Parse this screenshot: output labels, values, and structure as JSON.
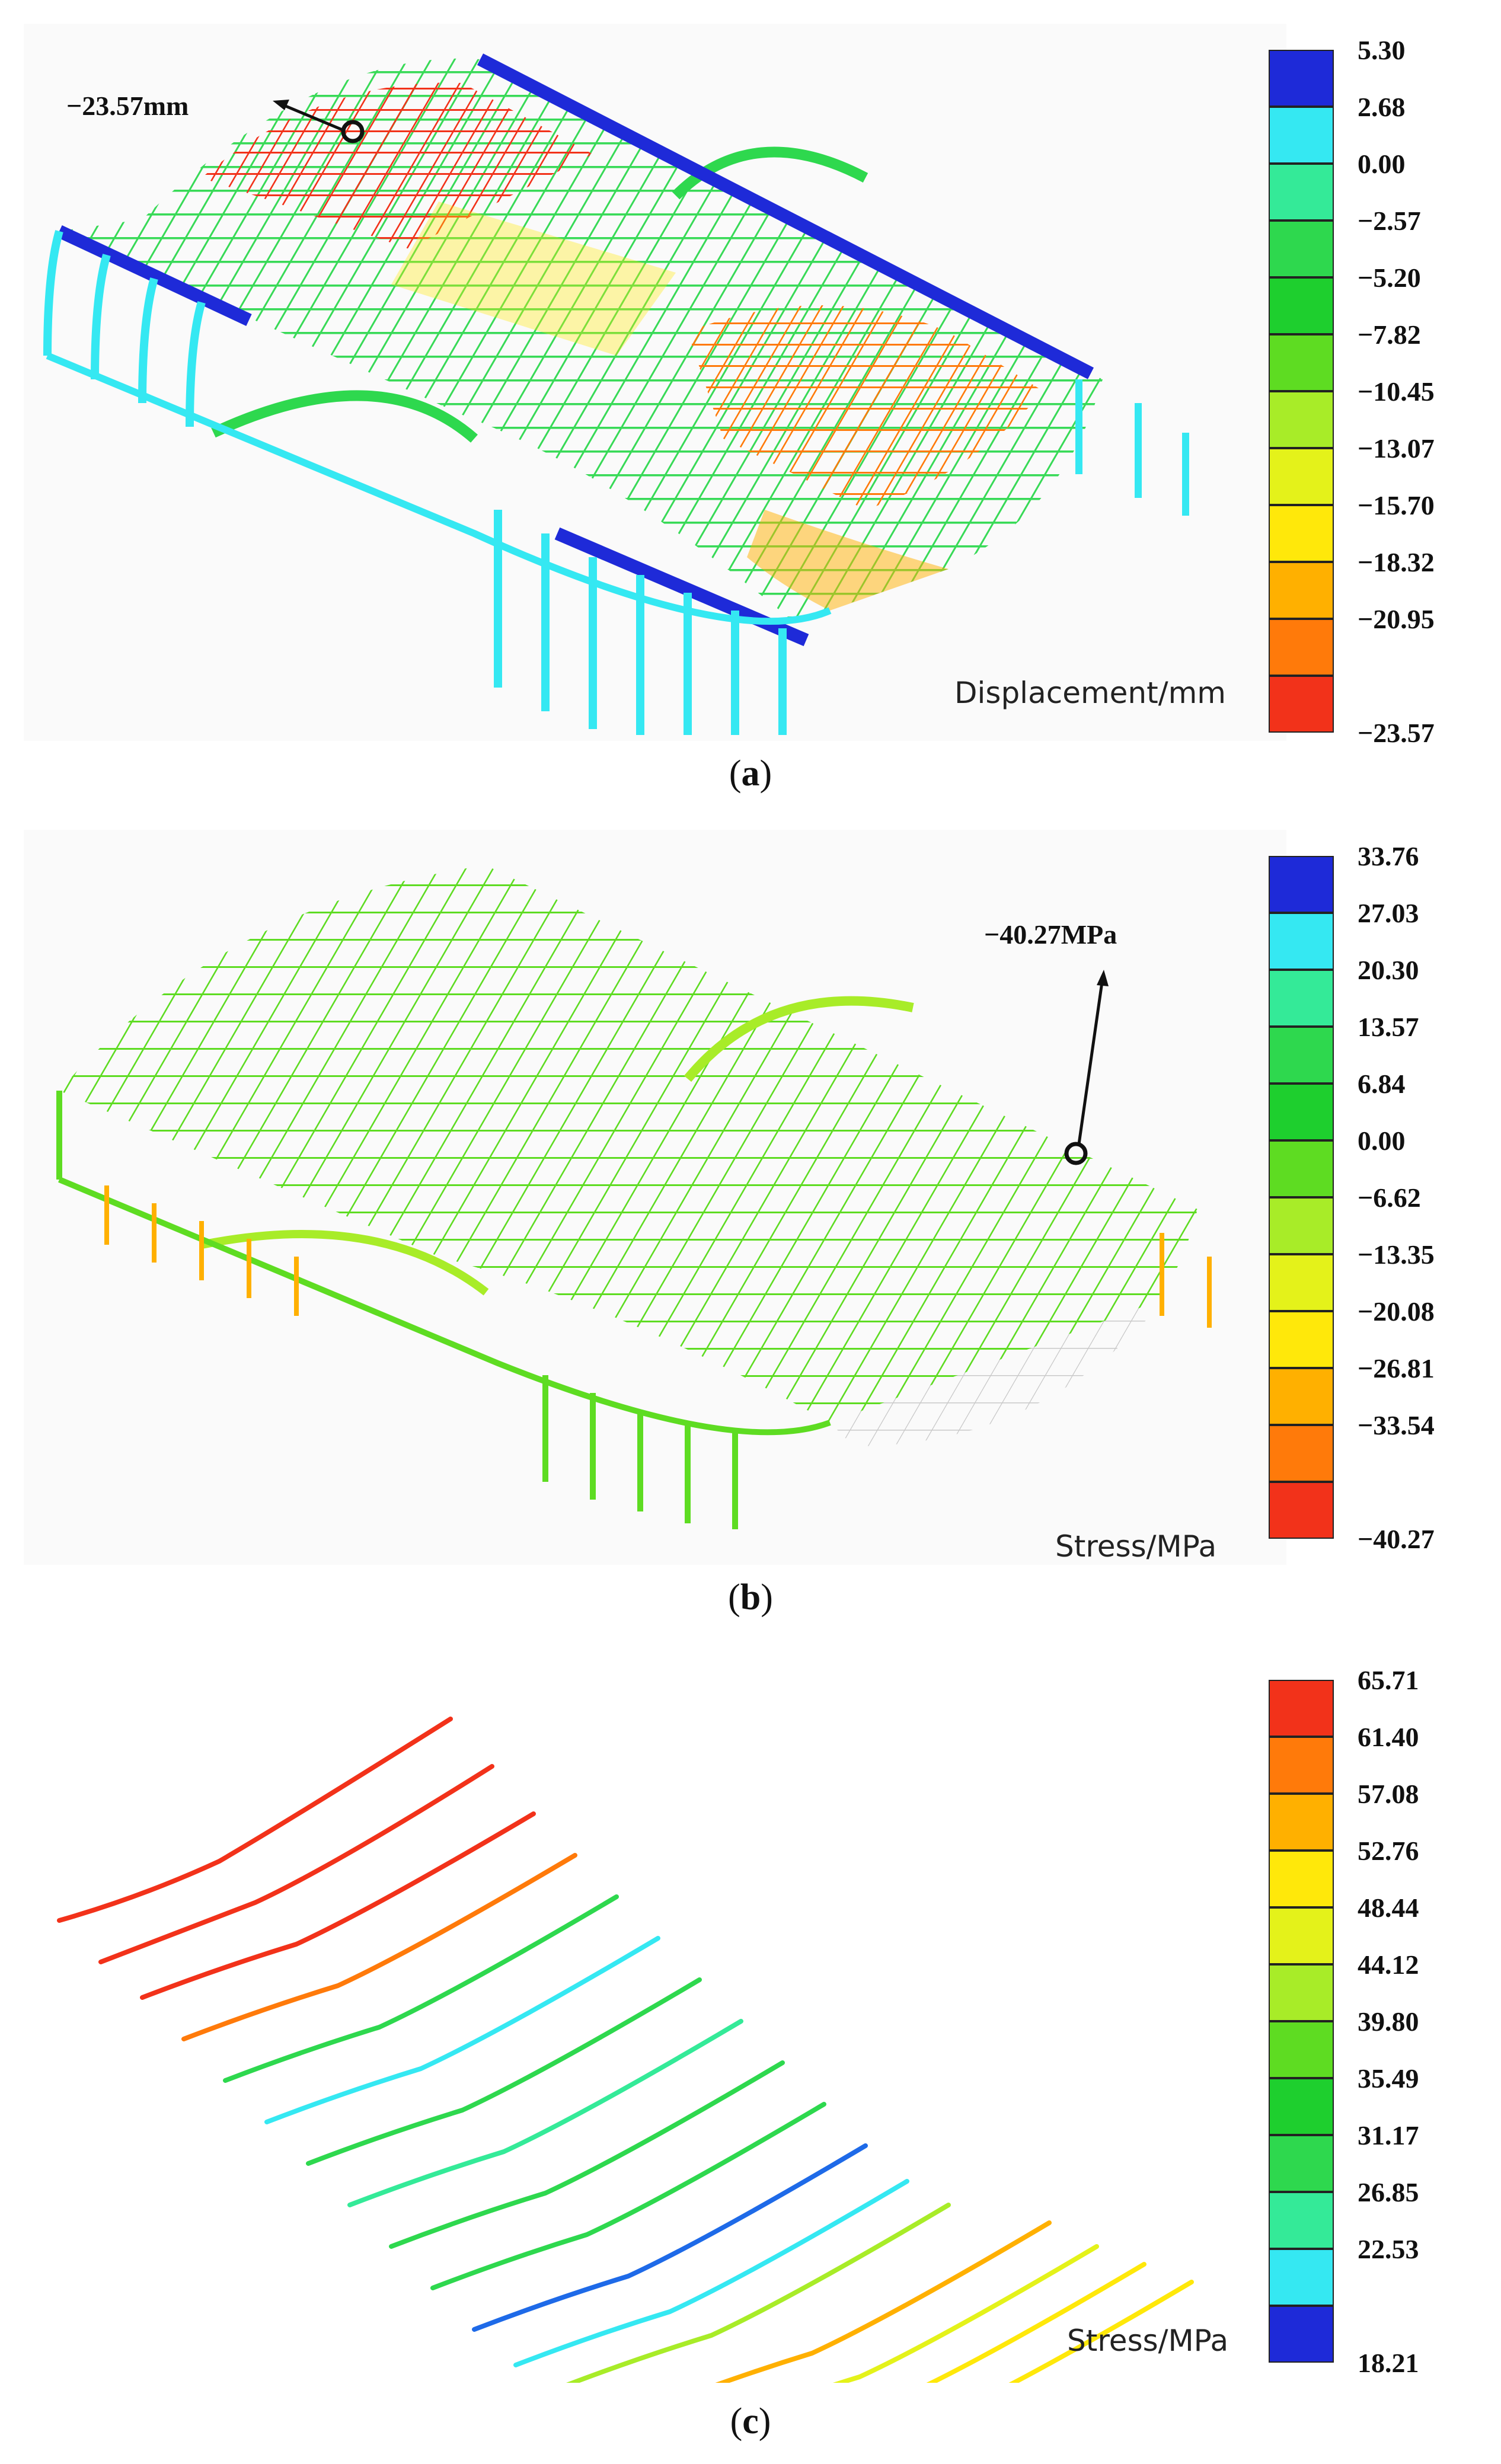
{
  "panels": [
    {
      "id": "a",
      "caption_letter": "a",
      "unit_label": "Displacement/mm",
      "callout_label": "−23.57mm",
      "legend_ticks": [
        "5.30",
        "2.68",
        "0.00",
        "−2.57",
        "−5.20",
        "−7.82",
        "−10.45",
        "−13.07",
        "−15.70",
        "−18.32",
        "−20.95",
        "−23.57"
      ],
      "legend_colors": [
        "#1e2ad8",
        "#35e8f2",
        "#34ea98",
        "#2ed84e",
        "#1ecf2e",
        "#5edc22",
        "#a8ec28",
        "#e4f21a",
        "#ffe80a",
        "#ffb000",
        "#ff7a0a",
        "#f2321a"
      ]
    },
    {
      "id": "b",
      "caption_letter": "b",
      "unit_label": "Stress/MPa",
      "callout_label": "−40.27MPa",
      "legend_ticks": [
        "33.76",
        "27.03",
        "20.30",
        "13.57",
        "6.84",
        "0.00",
        "−6.62",
        "−13.35",
        "−20.08",
        "−26.81",
        "−33.54",
        "−40.27"
      ],
      "legend_colors": [
        "#1e2ad8",
        "#35e8f2",
        "#34ea98",
        "#2ed84e",
        "#1ecf2e",
        "#5edc22",
        "#a8ec28",
        "#e4f21a",
        "#ffe80a",
        "#ffb000",
        "#ff7a0a",
        "#f2321a"
      ]
    },
    {
      "id": "c",
      "caption_letter": "c",
      "unit_label": "Stress/MPa",
      "callout_label": "",
      "legend_ticks": [
        "65.71",
        "61.40",
        "57.08",
        "52.76",
        "48.44",
        "44.12",
        "39.80",
        "35.49",
        "31.17",
        "26.85",
        "22.53",
        "18.21"
      ],
      "legend_colors": [
        "#f2321a",
        "#ff7a0a",
        "#ffb000",
        "#ffe80a",
        "#e4f21a",
        "#a8ec28",
        "#5edc22",
        "#1ecf2e",
        "#2ed84e",
        "#34ea98",
        "#35e8f2",
        "#1e2ad8"
      ]
    }
  ]
}
